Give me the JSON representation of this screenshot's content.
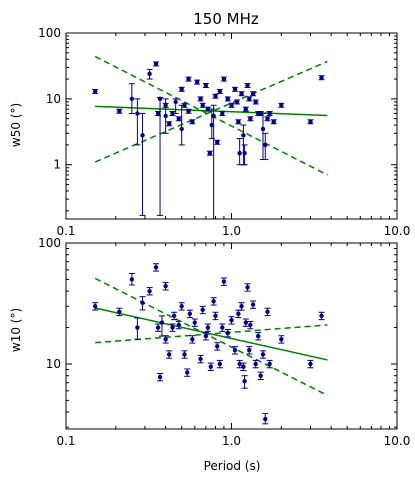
{
  "chart_data": [
    {
      "type": "scatter",
      "title": "150 MHz",
      "xlabel": "",
      "ylabel": "w50 (°)",
      "xscale": "log",
      "yscale": "log",
      "xlim": [
        0.1,
        10.0
      ],
      "ylim": [
        0.15,
        100
      ],
      "xticks": [
        "0.1",
        "1.0",
        "10.0"
      ],
      "yticks": [
        {
          "value": 1,
          "label": "1"
        },
        {
          "value": 10,
          "label": "10"
        },
        {
          "value": 100,
          "label": "100"
        }
      ],
      "colors": {
        "points": "#00008b",
        "fit": "#008000"
      },
      "points": [
        {
          "x": 0.15,
          "y": 13
        },
        {
          "x": 0.21,
          "y": 6.5
        },
        {
          "x": 0.25,
          "y": 10,
          "ylo": 6,
          "yhi": 17
        },
        {
          "x": 0.27,
          "y": 6,
          "ylo": 2,
          "yhi": 10
        },
        {
          "x": 0.29,
          "y": 2.8,
          "ylo": 0.17,
          "yhi": 6
        },
        {
          "x": 0.32,
          "y": 24,
          "ylo": 20,
          "yhi": 28
        },
        {
          "x": 0.35,
          "y": 34
        },
        {
          "x": 0.37,
          "y": 10,
          "ylo": 0.17,
          "yhi": 10.5
        },
        {
          "x": 0.36,
          "y": 6
        },
        {
          "x": 0.4,
          "y": 5.5,
          "ylo": 3,
          "yhi": 10
        },
        {
          "x": 0.4,
          "y": 8
        },
        {
          "x": 0.42,
          "y": 4.2
        },
        {
          "x": 0.44,
          "y": 6
        },
        {
          "x": 0.46,
          "y": 9,
          "ylo": 6,
          "yhi": 10
        },
        {
          "x": 0.48,
          "y": 5
        },
        {
          "x": 0.5,
          "y": 3.5,
          "ylo": 2,
          "yhi": 8
        },
        {
          "x": 0.5,
          "y": 14
        },
        {
          "x": 0.52,
          "y": 8
        },
        {
          "x": 0.55,
          "y": 6.5
        },
        {
          "x": 0.55,
          "y": 20
        },
        {
          "x": 0.58,
          "y": 4.5
        },
        {
          "x": 0.62,
          "y": 18
        },
        {
          "x": 0.65,
          "y": 10
        },
        {
          "x": 0.67,
          "y": 8
        },
        {
          "x": 0.7,
          "y": 16
        },
        {
          "x": 0.72,
          "y": 7
        },
        {
          "x": 0.74,
          "y": 1.5
        },
        {
          "x": 0.76,
          "y": 4,
          "ylo": 2.5,
          "yhi": 7
        },
        {
          "x": 0.78,
          "y": 5.5,
          "ylo": 0.15,
          "yhi": 8
        },
        {
          "x": 0.8,
          "y": 11
        },
        {
          "x": 0.82,
          "y": 2.2
        },
        {
          "x": 0.85,
          "y": 13
        },
        {
          "x": 0.88,
          "y": 6
        },
        {
          "x": 0.9,
          "y": 20
        },
        {
          "x": 0.95,
          "y": 10
        },
        {
          "x": 1.0,
          "y": 8
        },
        {
          "x": 1.05,
          "y": 14
        },
        {
          "x": 1.08,
          "y": 9
        },
        {
          "x": 1.1,
          "y": 4.5
        },
        {
          "x": 1.12,
          "y": 1.5,
          "ylo": 1,
          "yhi": 2.5
        },
        {
          "x": 1.15,
          "y": 12
        },
        {
          "x": 1.18,
          "y": 2.8,
          "ylo": 1,
          "yhi": 4
        },
        {
          "x": 1.2,
          "y": 1.5,
          "ylo": 1,
          "yhi": 2
        },
        {
          "x": 1.22,
          "y": 7
        },
        {
          "x": 1.25,
          "y": 16
        },
        {
          "x": 1.28,
          "y": 10
        },
        {
          "x": 1.3,
          "y": 5
        },
        {
          "x": 1.35,
          "y": 12
        },
        {
          "x": 1.4,
          "y": 9
        },
        {
          "x": 1.45,
          "y": 6
        },
        {
          "x": 1.5,
          "y": 6
        },
        {
          "x": 1.55,
          "y": 3.5,
          "ylo": 1.2,
          "yhi": 6
        },
        {
          "x": 1.6,
          "y": 2,
          "ylo": 1.2,
          "yhi": 3
        },
        {
          "x": 1.65,
          "y": 5
        },
        {
          "x": 1.7,
          "y": 6
        },
        {
          "x": 1.8,
          "y": 4.5
        },
        {
          "x": 2.0,
          "y": 8
        },
        {
          "x": 3.0,
          "y": 4.5
        },
        {
          "x": 3.5,
          "y": 21
        }
      ],
      "lines": [
        {
          "style": "solid",
          "x": [
            0.15,
            3.8
          ],
          "y": [
            7.7,
            5.6
          ]
        },
        {
          "style": "dashed",
          "x": [
            0.15,
            3.8
          ],
          "y": [
            44,
            0.7
          ]
        },
        {
          "style": "dashed",
          "x": [
            0.15,
            3.8
          ],
          "y": [
            1.1,
            37
          ]
        }
      ]
    },
    {
      "type": "scatter",
      "title": "",
      "xlabel": "Period (s)",
      "ylabel": "w10 (°)",
      "xscale": "log",
      "yscale": "log",
      "xlim": [
        0.1,
        10.0
      ],
      "ylim": [
        2.9,
        100
      ],
      "xticks": [
        "0.1",
        "1.0",
        "10.0"
      ],
      "yticks": [
        {
          "value": 10,
          "label": "10"
        },
        {
          "value": 100,
          "label": "100"
        }
      ],
      "colors": {
        "points": "#00008b",
        "fit": "#008000"
      },
      "points": [
        {
          "x": 0.15,
          "y": 30
        },
        {
          "x": 0.21,
          "y": 27
        },
        {
          "x": 0.25,
          "y": 50,
          "ylo": 45,
          "yhi": 56
        },
        {
          "x": 0.27,
          "y": 20,
          "ylo": 16,
          "yhi": 24
        },
        {
          "x": 0.29,
          "y": 32,
          "ylo": 28,
          "yhi": 36
        },
        {
          "x": 0.32,
          "y": 40
        },
        {
          "x": 0.35,
          "y": 63
        },
        {
          "x": 0.36,
          "y": 20
        },
        {
          "x": 0.37,
          "y": 7.8
        },
        {
          "x": 0.38,
          "y": 22,
          "ylo": 17,
          "yhi": 25
        },
        {
          "x": 0.4,
          "y": 16
        },
        {
          "x": 0.4,
          "y": 44
        },
        {
          "x": 0.42,
          "y": 12
        },
        {
          "x": 0.44,
          "y": 20
        },
        {
          "x": 0.45,
          "y": 25
        },
        {
          "x": 0.48,
          "y": 21
        },
        {
          "x": 0.5,
          "y": 30
        },
        {
          "x": 0.52,
          "y": 12
        },
        {
          "x": 0.54,
          "y": 8.5
        },
        {
          "x": 0.56,
          "y": 26
        },
        {
          "x": 0.58,
          "y": 16
        },
        {
          "x": 0.6,
          "y": 22
        },
        {
          "x": 0.65,
          "y": 11
        },
        {
          "x": 0.67,
          "y": 28
        },
        {
          "x": 0.7,
          "y": 17
        },
        {
          "x": 0.72,
          "y": 20
        },
        {
          "x": 0.75,
          "y": 9.5
        },
        {
          "x": 0.78,
          "y": 33
        },
        {
          "x": 0.8,
          "y": 25
        },
        {
          "x": 0.82,
          "y": 14
        },
        {
          "x": 0.85,
          "y": 10
        },
        {
          "x": 0.88,
          "y": 20
        },
        {
          "x": 0.9,
          "y": 48
        },
        {
          "x": 0.95,
          "y": 18
        },
        {
          "x": 1.0,
          "y": 23
        },
        {
          "x": 1.05,
          "y": 13
        },
        {
          "x": 1.1,
          "y": 26
        },
        {
          "x": 1.12,
          "y": 10
        },
        {
          "x": 1.15,
          "y": 30
        },
        {
          "x": 1.18,
          "y": 9.5
        },
        {
          "x": 1.2,
          "y": 7.2,
          "ylo": 6.3,
          "yhi": 8
        },
        {
          "x": 1.22,
          "y": 22
        },
        {
          "x": 1.25,
          "y": 43
        },
        {
          "x": 1.28,
          "y": 13
        },
        {
          "x": 1.3,
          "y": 21
        },
        {
          "x": 1.35,
          "y": 31
        },
        {
          "x": 1.4,
          "y": 10
        },
        {
          "x": 1.45,
          "y": 17
        },
        {
          "x": 1.5,
          "y": 8
        },
        {
          "x": 1.55,
          "y": 12
        },
        {
          "x": 1.6,
          "y": 3.5,
          "ylo": 3.2,
          "yhi": 3.9
        },
        {
          "x": 1.65,
          "y": 27
        },
        {
          "x": 1.7,
          "y": 10
        },
        {
          "x": 2.0,
          "y": 16
        },
        {
          "x": 3.0,
          "y": 10
        },
        {
          "x": 3.5,
          "y": 25
        }
      ],
      "lines": [
        {
          "style": "solid",
          "x": [
            0.15,
            3.8
          ],
          "y": [
            29,
            10.8
          ]
        },
        {
          "style": "dashed",
          "x": [
            0.15,
            3.8
          ],
          "y": [
            51,
            5.5
          ]
        },
        {
          "style": "dashed",
          "x": [
            0.15,
            3.8
          ],
          "y": [
            15,
            21
          ]
        }
      ]
    }
  ]
}
